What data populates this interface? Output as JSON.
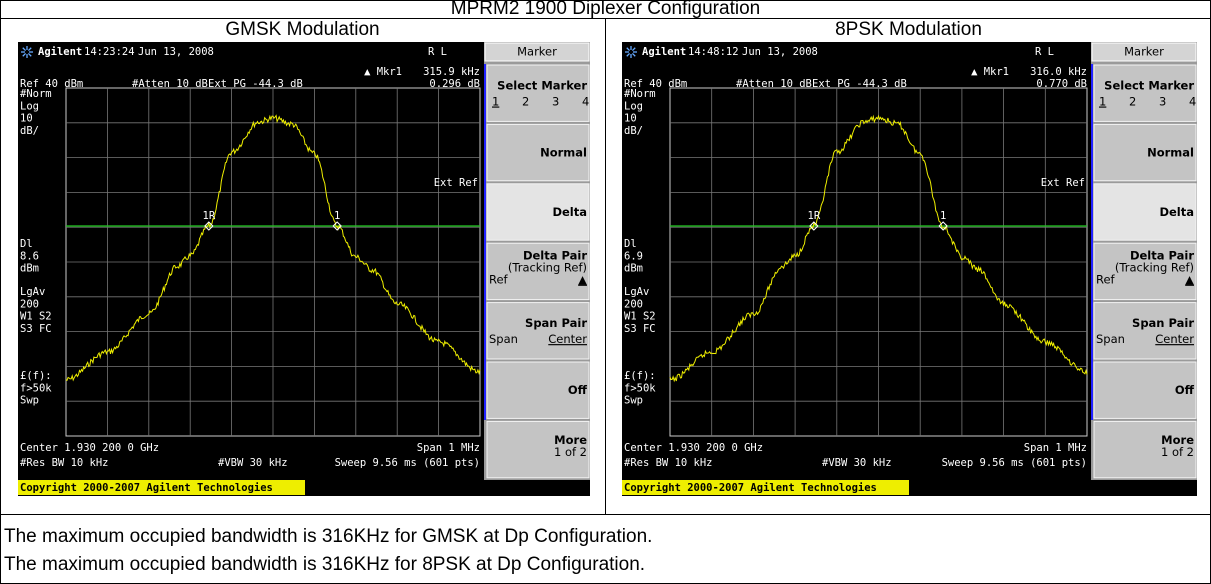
{
  "title": "MPRM2 1900 Diplexer Configuration",
  "panels": [
    {
      "heading": "GMSK Modulation",
      "screen": {
        "brand": "Agilent",
        "time": "14:23:24",
        "date": "Jun 13, 2008",
        "rl": "R L",
        "menu": "Marker",
        "marker_readout": "▲ Mkr1",
        "marker_freq": "315.9 kHz",
        "marker_value": "0.296 dB",
        "ref": "Ref 40 dBm",
        "atten": "#Atten 10 dB",
        "ext_pg": "Ext PG -44.3 dB",
        "ext_ref": "Ext Ref",
        "side_top": [
          "#Norm",
          "Log",
          "10",
          "dB/"
        ],
        "side_mid": [
          "Dl",
          "8.6",
          "dBm"
        ],
        "side_low": [
          "LgAv",
          "200",
          "W1  S2",
          "S3  FC"
        ],
        "side_bottom": [
          "£(f):",
          "f>50k",
          "Swp"
        ],
        "marker_labels": [
          "1R",
          "1"
        ],
        "center": "Center 1.930 200 0 GHz",
        "span": "Span 1 MHz",
        "res_bw": "#Res BW 10 kHz",
        "vbw": "#VBW 30 kHz",
        "sweep": "Sweep 9.56 ms (601 pts)",
        "copyright": "Copyright 2000-2007 Agilent Technologies",
        "softkeys": [
          {
            "title": "Select Marker",
            "options": [
              "1",
              "2",
              "3",
              "4"
            ]
          },
          {
            "title": "Normal"
          },
          {
            "title": "Delta"
          },
          {
            "title": "Delta Pair",
            "subtitle": "(Tracking Ref)",
            "left": "Ref",
            "right": "▲"
          },
          {
            "title": "Span Pair",
            "left": "Span",
            "right": "Center"
          },
          {
            "title": "Off"
          },
          {
            "title": "More",
            "subtitle": "1 of 2"
          }
        ]
      }
    },
    {
      "heading": "8PSK Modulation",
      "screen": {
        "brand": "Agilent",
        "time": "14:48:12",
        "date": "Jun 13, 2008",
        "rl": "R L",
        "menu": "Marker",
        "marker_readout": "▲ Mkr1",
        "marker_freq": "316.0 kHz",
        "marker_value": "0.770 dB",
        "ref": "Ref 40 dBm",
        "atten": "#Atten 10 dB",
        "ext_pg": "Ext PG -44.3 dB",
        "ext_ref": "Ext Ref",
        "side_top": [
          "#Norm",
          "Log",
          "10",
          "dB/"
        ],
        "side_mid": [
          "Dl",
          "6.9",
          "dBm"
        ],
        "side_low": [
          "LgAv",
          "200",
          "W1  S2",
          "S3  FC"
        ],
        "side_bottom": [
          "£(f):",
          "f>50k",
          "Swp"
        ],
        "marker_labels": [
          "1R",
          "1"
        ],
        "center": "Center 1.930 200 0 GHz",
        "span": "Span 1 MHz",
        "res_bw": "#Res BW 10 kHz",
        "vbw": "#VBW 30 kHz",
        "sweep": "Sweep 9.56 ms (601 pts)",
        "copyright": "Copyright 2000-2007 Agilent Technologies",
        "softkeys": [
          {
            "title": "Select Marker",
            "options": [
              "1",
              "2",
              "3",
              "4"
            ]
          },
          {
            "title": "Normal"
          },
          {
            "title": "Delta"
          },
          {
            "title": "Delta Pair",
            "subtitle": "(Tracking Ref)",
            "left": "Ref",
            "right": "▲"
          },
          {
            "title": "Span Pair",
            "left": "Span",
            "right": "Center"
          },
          {
            "title": "Off"
          },
          {
            "title": "More",
            "subtitle": "1 of 2"
          }
        ]
      }
    }
  ],
  "notes": [
    "The maximum occupied bandwidth is 316KHz for GMSK at Dp Configuration.",
    "The maximum occupied bandwidth is 316KHz for 8PSK at Dp Configuration."
  ]
}
